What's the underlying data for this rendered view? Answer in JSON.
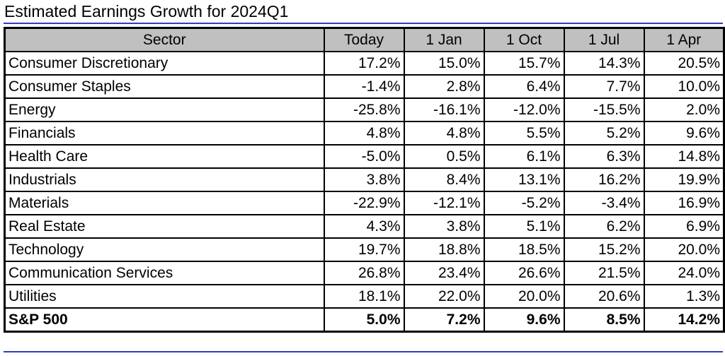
{
  "chart_data": {
    "type": "table",
    "title": "Estimated Earnings Growth for 2024Q1",
    "columns": [
      "Sector",
      "Today",
      "1 Jan",
      "1 Oct",
      "1 Jul",
      "1 Apr"
    ],
    "rows": [
      {
        "sector": "Consumer Discretionary",
        "values": [
          "17.2%",
          "15.0%",
          "15.7%",
          "14.3%",
          "20.5%"
        ]
      },
      {
        "sector": "Consumer Staples",
        "values": [
          "-1.4%",
          "2.8%",
          "6.4%",
          "7.7%",
          "10.0%"
        ]
      },
      {
        "sector": "Energy",
        "values": [
          "-25.8%",
          "-16.1%",
          "-12.0%",
          "-15.5%",
          "2.0%"
        ]
      },
      {
        "sector": "Financials",
        "values": [
          "4.8%",
          "4.8%",
          "5.5%",
          "5.2%",
          "9.6%"
        ]
      },
      {
        "sector": "Health Care",
        "values": [
          "-5.0%",
          "0.5%",
          "6.1%",
          "6.3%",
          "14.8%"
        ]
      },
      {
        "sector": "Industrials",
        "values": [
          "3.8%",
          "8.4%",
          "13.1%",
          "16.2%",
          "19.9%"
        ]
      },
      {
        "sector": "Materials",
        "values": [
          "-22.9%",
          "-12.1%",
          "-5.2%",
          "-3.4%",
          "16.9%"
        ]
      },
      {
        "sector": "Real Estate",
        "values": [
          "4.3%",
          "3.8%",
          "5.1%",
          "6.2%",
          "6.9%"
        ]
      },
      {
        "sector": "Technology",
        "values": [
          "19.7%",
          "18.8%",
          "18.5%",
          "15.2%",
          "20.0%"
        ]
      },
      {
        "sector": "Communication Services",
        "values": [
          "26.8%",
          "23.4%",
          "26.6%",
          "21.5%",
          "24.0%"
        ]
      },
      {
        "sector": "Utilities",
        "values": [
          "18.1%",
          "22.0%",
          "20.0%",
          "20.6%",
          "1.3%"
        ]
      },
      {
        "sector": "S&P 500",
        "values": [
          "5.0%",
          "7.2%",
          "9.6%",
          "8.5%",
          "14.2%"
        ],
        "bold": true
      }
    ],
    "colors": {
      "header_background": "#c0c0c0",
      "rule": "#2a3fbf",
      "border": "#000000"
    }
  }
}
